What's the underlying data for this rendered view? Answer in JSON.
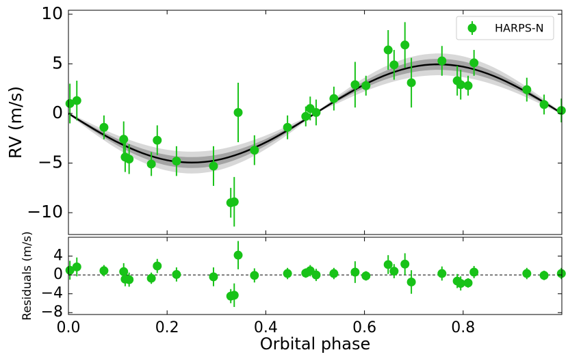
{
  "chart_data": [
    {
      "type": "scatter",
      "ylabel": "RV (m/s)",
      "xlim": [
        0,
        1
      ],
      "xticks": [
        0,
        0.2,
        0.4,
        0.6,
        0.8
      ],
      "ylim": [
        -12.2,
        10.4
      ],
      "yticks": [
        10,
        5,
        0,
        {
          "value": -5,
          "label": "−5"
        },
        {
          "value": -10,
          "label": "−10"
        }
      ],
      "legend": "upper right",
      "series": [
        {
          "name": "HARPS-N",
          "color": "#18c218",
          "x": [
            0.003,
            0.017,
            0.072,
            0.112,
            0.115,
            0.123,
            0.168,
            0.18,
            0.219,
            0.294,
            0.329,
            0.336,
            0.344,
            0.377,
            0.444,
            0.481,
            0.49,
            0.502,
            0.538,
            0.581,
            0.603,
            0.648,
            0.66,
            0.682,
            0.695,
            0.757,
            0.788,
            0.795,
            0.81,
            0.822,
            0.929,
            0.964,
            0.999
          ],
          "values": [
            1.0,
            1.3,
            -1.4,
            -2.6,
            -4.4,
            -4.6,
            -5.1,
            -2.7,
            -4.8,
            -5.3,
            -9.0,
            -8.9,
            0.1,
            -3.7,
            -1.4,
            -0.3,
            0.5,
            0.1,
            1.5,
            2.9,
            2.8,
            6.4,
            4.9,
            6.9,
            3.1,
            5.3,
            3.3,
            2.9,
            2.8,
            5.1,
            2.4,
            0.9,
            0.3
          ],
          "errors": [
            2.0,
            2.0,
            1.2,
            1.8,
            1.5,
            1.5,
            1.2,
            1.5,
            1.5,
            2.0,
            1.5,
            2.5,
            3.0,
            1.5,
            1.2,
            1.0,
            1.2,
            1.3,
            1.2,
            2.3,
            1.0,
            2.0,
            1.5,
            2.3,
            2.5,
            1.5,
            1.5,
            1.5,
            1.0,
            1.3,
            1.2,
            1.0,
            1.2
          ]
        }
      ],
      "model": {
        "color": "#000000",
        "x": [
          0,
          0.05,
          0.1,
          0.15,
          0.2,
          0.25,
          0.3,
          0.35,
          0.4,
          0.45,
          0.5,
          0.55,
          0.6,
          0.65,
          0.7,
          0.75,
          0.8,
          0.85,
          0.9,
          0.95,
          1
        ],
        "values": [
          0,
          -1.53,
          -2.91,
          -4.0,
          -4.71,
          -4.95,
          -4.71,
          -4.0,
          -2.91,
          -1.53,
          0,
          1.53,
          2.91,
          4.0,
          4.71,
          4.95,
          4.71,
          4.0,
          2.91,
          1.53,
          0
        ]
      },
      "bands": [
        {
          "color": "#b8b8b8",
          "upper": [
            0.1,
            -1.12,
            -2.22,
            -3.09,
            -3.66,
            -3.85,
            -3.66,
            -3.09,
            -2.22,
            -1.12,
            0.1,
            1.94,
            3.6,
            4.91,
            5.76,
            6.05,
            5.76,
            4.91,
            3.6,
            1.94,
            0.1
          ],
          "lower": [
            -0.1,
            -1.94,
            -3.6,
            -4.91,
            -5.76,
            -6.05,
            -5.76,
            -4.91,
            -3.6,
            -1.94,
            -0.1,
            1.12,
            2.22,
            3.09,
            3.66,
            3.85,
            3.66,
            3.09,
            2.22,
            1.12,
            -0.1
          ]
        },
        {
          "color": "#7a7a7a",
          "upper": [
            0.05,
            -1.33,
            -2.57,
            -3.55,
            -4.18,
            -4.4,
            -4.18,
            -3.55,
            -2.57,
            -1.33,
            0.05,
            1.73,
            3.25,
            4.45,
            5.24,
            5.5,
            5.24,
            4.45,
            3.25,
            1.73,
            0.05
          ],
          "lower": [
            -0.05,
            -1.73,
            -3.25,
            -4.45,
            -5.24,
            -5.5,
            -5.24,
            -4.45,
            -3.25,
            -1.73,
            -0.05,
            1.33,
            2.57,
            3.55,
            4.18,
            4.4,
            4.18,
            3.55,
            2.57,
            1.33,
            -0.05
          ]
        }
      ]
    },
    {
      "type": "scatter",
      "ylabel": "Residuals (m/s)",
      "xlabel": "Orbital phase",
      "xlim": [
        0,
        1
      ],
      "xticks": [
        {
          "value": 0,
          "label": "0.0"
        },
        {
          "value": 0.2,
          "label": "0.2"
        },
        {
          "value": 0.4,
          "label": "0.4"
        },
        {
          "value": 0.6,
          "label": "0.6"
        },
        {
          "value": 0.8,
          "label": "0.8"
        }
      ],
      "ylim": [
        -8.4,
        8
      ],
      "yticks": [
        4,
        0,
        {
          "value": -4,
          "label": "−4"
        },
        {
          "value": -8,
          "label": "−8"
        }
      ],
      "reference_line": 0,
      "series": [
        {
          "color": "#18c218",
          "x": [
            0.003,
            0.017,
            0.072,
            0.112,
            0.115,
            0.123,
            0.168,
            0.18,
            0.219,
            0.294,
            0.329,
            0.336,
            0.344,
            0.377,
            0.444,
            0.481,
            0.49,
            0.502,
            0.538,
            0.581,
            0.603,
            0.648,
            0.66,
            0.682,
            0.695,
            0.757,
            0.788,
            0.795,
            0.81,
            0.822,
            0.929,
            0.964,
            0.999
          ],
          "values": [
            1.0,
            1.7,
            0.9,
            0.7,
            -0.9,
            -1.0,
            -0.7,
            1.9,
            0.1,
            -0.4,
            -4.5,
            -4.3,
            4.2,
            -0.1,
            0.3,
            0.4,
            0.9,
            0.0,
            0.3,
            0.6,
            -0.2,
            2.2,
            0.8,
            2.3,
            -1.5,
            0.3,
            -1.3,
            -1.8,
            -1.7,
            0.6,
            0.3,
            -0.1,
            0.3
          ],
          "errors": [
            2.0,
            2.0,
            1.2,
            1.8,
            1.5,
            1.5,
            1.2,
            1.5,
            1.5,
            2.0,
            1.5,
            2.5,
            3.0,
            1.5,
            1.2,
            1.0,
            1.2,
            1.3,
            1.2,
            2.3,
            1.0,
            2.0,
            1.5,
            2.3,
            2.5,
            1.5,
            1.5,
            1.5,
            1.0,
            1.3,
            1.2,
            1.0,
            1.2
          ]
        }
      ]
    }
  ]
}
